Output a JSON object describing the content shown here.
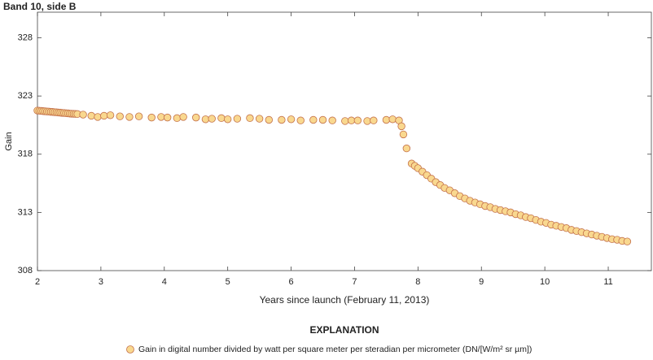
{
  "chart_data": {
    "type": "scatter",
    "title": "Band 10, side B",
    "x_label": "Years since launch (February 11, 2013)",
    "y_label": "Gain",
    "legend_title": "EXPLANATION",
    "grid": false,
    "xlim": [
      2,
      11.68
    ],
    "ylim": [
      308,
      330.2
    ],
    "xticks": [
      2,
      3,
      4,
      5,
      6,
      7,
      8,
      9,
      10,
      11
    ],
    "yticks": [
      308,
      313,
      318,
      323,
      328
    ],
    "series": [
      {
        "name": "Gain in digital number divided by watt per square meter per steradian per micrometer (DN/[W/m² sr µm])",
        "color": "#f9d88f",
        "edge_color": "#c4714a",
        "x": [
          2.0,
          2.03,
          2.06,
          2.09,
          2.12,
          2.15,
          2.18,
          2.21,
          2.24,
          2.27,
          2.3,
          2.33,
          2.36,
          2.39,
          2.42,
          2.45,
          2.48,
          2.51,
          2.54,
          2.57,
          2.6,
          2.63,
          2.72,
          2.85,
          2.95,
          3.05,
          3.15,
          3.3,
          3.45,
          3.6,
          3.8,
          3.95,
          4.05,
          4.2,
          4.3,
          4.5,
          4.65,
          4.75,
          4.9,
          5.0,
          5.15,
          5.35,
          5.5,
          5.65,
          5.85,
          6.0,
          6.15,
          6.35,
          6.5,
          6.65,
          6.85,
          6.95,
          7.05,
          7.2,
          7.3,
          7.5,
          7.6,
          7.7,
          7.74,
          7.77,
          7.82,
          7.9,
          7.95,
          8.0,
          8.07,
          8.14,
          8.21,
          8.28,
          8.35,
          8.42,
          8.5,
          8.58,
          8.66,
          8.74,
          8.82,
          8.9,
          8.98,
          9.06,
          9.14,
          9.22,
          9.3,
          9.38,
          9.46,
          9.54,
          9.62,
          9.7,
          9.78,
          9.86,
          9.94,
          10.02,
          10.1,
          10.18,
          10.26,
          10.34,
          10.42,
          10.5,
          10.58,
          10.66,
          10.74,
          10.82,
          10.9,
          10.98,
          11.06,
          11.14,
          11.22,
          11.3
        ],
        "values": [
          321.75,
          321.73,
          321.72,
          321.7,
          321.69,
          321.67,
          321.66,
          321.64,
          321.63,
          321.61,
          321.6,
          321.58,
          321.57,
          321.55,
          321.54,
          321.52,
          321.51,
          321.49,
          321.48,
          321.47,
          321.46,
          321.45,
          321.4,
          321.3,
          321.2,
          321.3,
          321.35,
          321.25,
          321.2,
          321.25,
          321.15,
          321.2,
          321.15,
          321.1,
          321.2,
          321.15,
          321.0,
          321.05,
          321.1,
          321.0,
          321.05,
          321.1,
          321.05,
          320.95,
          320.95,
          321.0,
          320.9,
          320.95,
          320.95,
          320.9,
          320.85,
          320.9,
          320.9,
          320.85,
          320.9,
          320.95,
          321.0,
          320.9,
          320.4,
          319.7,
          318.5,
          317.2,
          317.0,
          316.8,
          316.5,
          316.2,
          315.9,
          315.6,
          315.35,
          315.1,
          314.9,
          314.65,
          314.4,
          314.2,
          314.0,
          313.85,
          313.7,
          313.55,
          313.45,
          313.3,
          313.2,
          313.1,
          313.0,
          312.85,
          312.75,
          312.6,
          312.5,
          312.35,
          312.2,
          312.1,
          311.95,
          311.85,
          311.75,
          311.65,
          311.5,
          311.4,
          311.3,
          311.2,
          311.1,
          311.0,
          310.9,
          310.8,
          310.7,
          310.65,
          310.55,
          310.5
        ]
      }
    ]
  }
}
